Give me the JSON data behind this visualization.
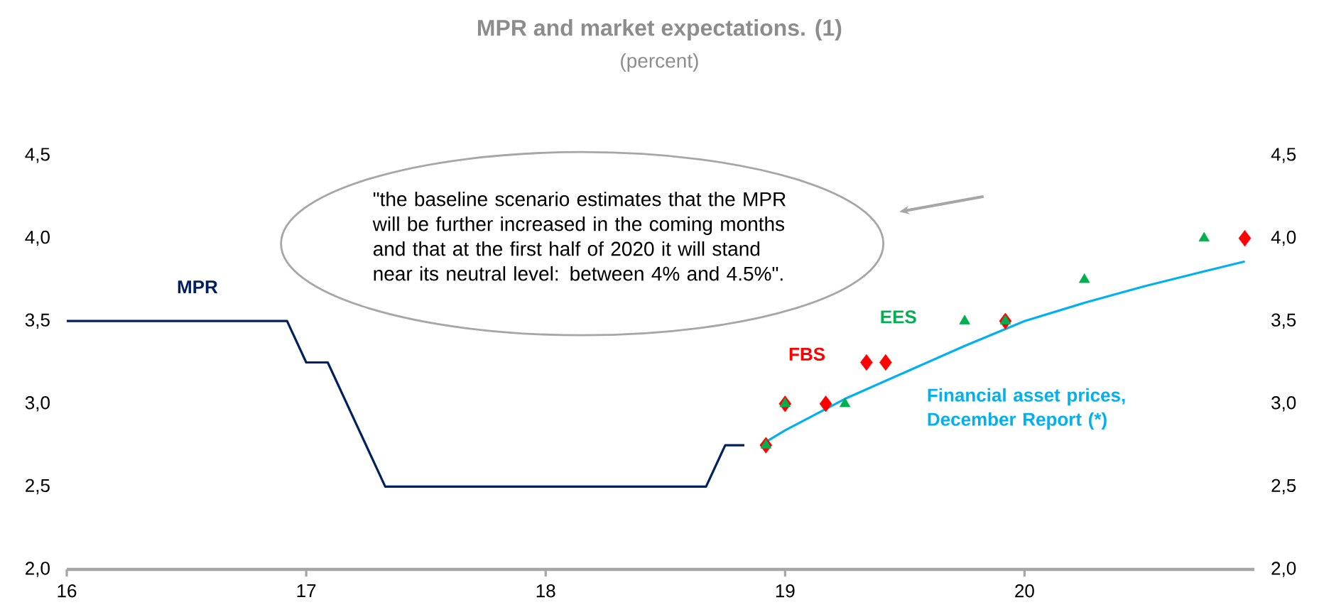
{
  "chart_data": {
    "type": "line",
    "title": "MPR and market expectations. (1)",
    "subtitle": "(percent)",
    "xlim": [
      16,
      20.96
    ],
    "xticks": [
      16,
      17,
      18,
      19,
      20
    ],
    "ylim": [
      2,
      4.5
    ],
    "yticks": [
      {
        "value": 2,
        "label": "2,0"
      },
      {
        "value": 2.5,
        "label": "2,5"
      },
      {
        "value": 3,
        "label": "3,0"
      },
      {
        "value": 3.5,
        "label": "3,5"
      },
      {
        "value": 4,
        "label": "4,0"
      },
      {
        "value": 4.5,
        "label": "4,5"
      }
    ],
    "y2lim": [
      2,
      4.5
    ],
    "y2ticks": [
      {
        "value": 2,
        "label": "2,0"
      },
      {
        "value": 2.5,
        "label": "2,5"
      },
      {
        "value": 3,
        "label": "3,0"
      },
      {
        "value": 3.5,
        "label": "3,5"
      },
      {
        "value": 4,
        "label": "4,0"
      },
      {
        "value": 4.5,
        "label": "4,5"
      }
    ],
    "grid": false,
    "series": [
      {
        "name": "MPR",
        "marker": "none",
        "color": "#002060",
        "x": [
          16,
          16.92,
          17.0,
          17.09,
          17.33,
          18.67,
          18.75,
          18.83
        ],
        "values": [
          3.5,
          3.5,
          3.25,
          3.25,
          2.5,
          2.5,
          2.75,
          2.75
        ]
      },
      {
        "name": "FBS",
        "type": "scatter",
        "marker": "diamond",
        "color": "#ff0000",
        "x": [
          18.92,
          19.0,
          19.17,
          19.34,
          19.42,
          19.92,
          20.92
        ],
        "values": [
          2.75,
          3.0,
          3.0,
          3.25,
          3.25,
          3.5,
          4.0
        ]
      },
      {
        "name": "EES",
        "type": "scatter",
        "marker": "triangle",
        "color": "#00b050",
        "x": [
          18.92,
          19.0,
          19.25,
          19.75,
          19.92,
          20.25,
          20.75
        ],
        "values": [
          2.75,
          3.0,
          3.0,
          3.5,
          3.5,
          3.75,
          4.0
        ]
      },
      {
        "name": "Financial asset prices, December Report (*)",
        "marker": "none",
        "color": "#00b0f0",
        "x": [
          18.92,
          19.0,
          19.25,
          19.5,
          19.75,
          20.0,
          20.25,
          20.5,
          20.75,
          20.92
        ],
        "values": [
          2.77,
          2.84,
          3.03,
          3.19,
          3.35,
          3.5,
          3.61,
          3.71,
          3.8,
          3.86
        ]
      }
    ],
    "annotations": [
      "\"the baseline scenario estimates that the MPR will be further increased in the coming months and that at the first half of 2020 it will stand near its neutral level: between 4% and 4.5%\"."
    ]
  }
}
